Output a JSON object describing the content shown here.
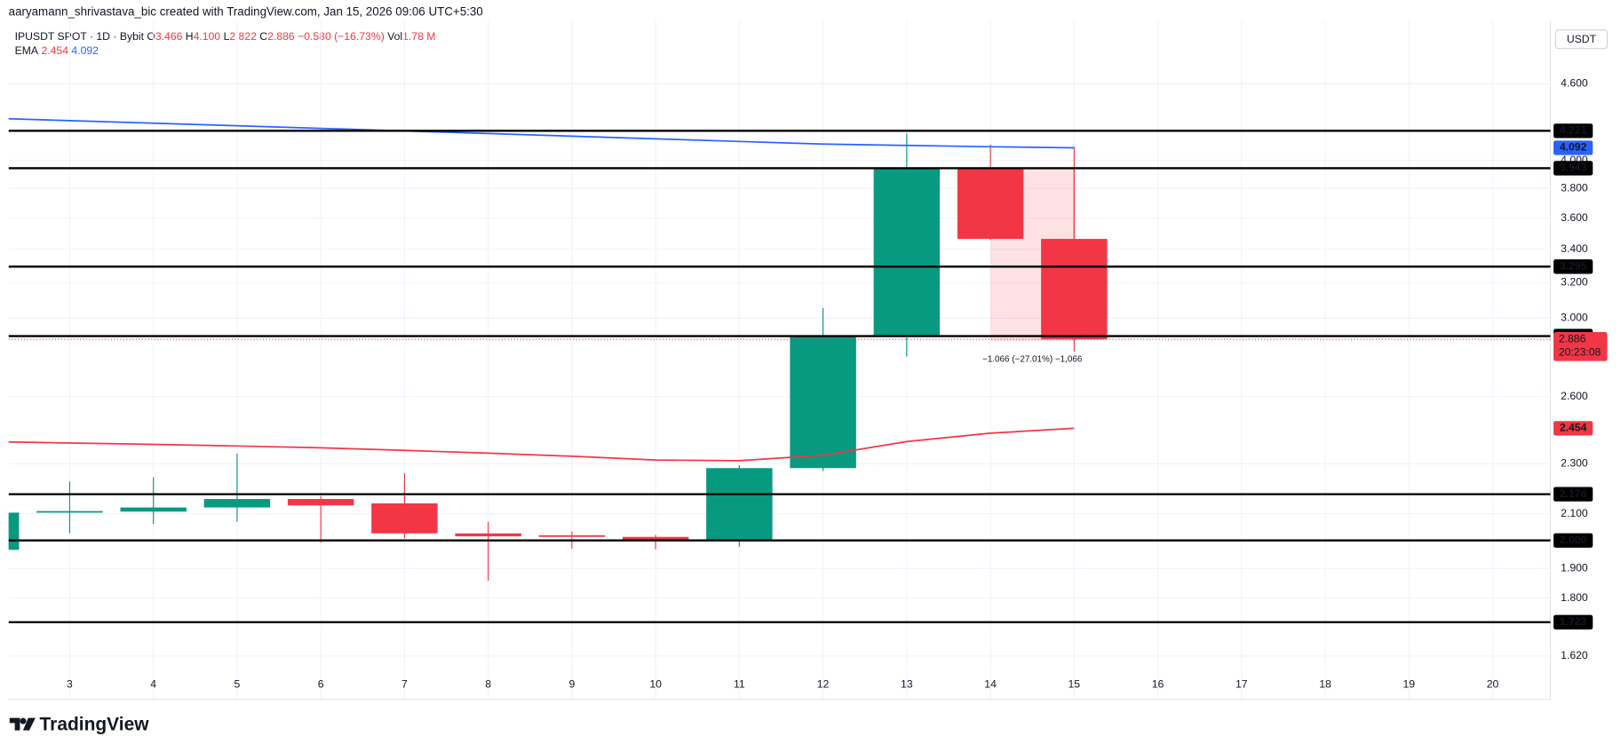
{
  "header": {
    "credit": "aaryamann_shrivastava_bic created with TradingView.com, Jan 15, 2026 09:06 UTC+5:30",
    "symbol": "IPUSDT SPOT · 1D · Bybit",
    "ohlc": [
      {
        "label": "O",
        "value": "3.466"
      },
      {
        "label": "H",
        "value": "4.100"
      },
      {
        "label": "L",
        "value": "2.822"
      },
      {
        "label": "C",
        "value": "2.886"
      }
    ],
    "change": "−0.580 (−16.73%)",
    "volume": {
      "label": "Vol",
      "value": "1.78 M"
    },
    "currency": "USDT",
    "brand": "TradingView"
  },
  "chart_data": {
    "type": "candlestick",
    "x": [
      2,
      3,
      4,
      5,
      6,
      7,
      8,
      9,
      10,
      11,
      12,
      13,
      14,
      15
    ],
    "series": [
      {
        "name": "IPUSDT",
        "up_color": "#089981",
        "down_color": "#f23645",
        "open": [
          1.966,
          2.104,
          2.108,
          2.124,
          2.157,
          2.14,
          2.026,
          2.019,
          2.013,
          2.003,
          2.282,
          2.904,
          3.943,
          3.466
        ],
        "high": [
          2.104,
          2.227,
          2.244,
          2.343,
          2.169,
          2.261,
          2.069,
          2.033,
          2.02,
          2.294,
          3.056,
          4.2,
          4.116,
          4.1
        ],
        "low": [
          1.966,
          2.026,
          2.061,
          2.069,
          1.992,
          2.008,
          1.858,
          1.97,
          1.968,
          1.977,
          2.27,
          2.797,
          3.461,
          2.822
        ],
        "close": [
          2.104,
          2.11,
          2.124,
          2.157,
          2.132,
          2.026,
          2.015,
          2.013,
          2.003,
          2.282,
          2.904,
          3.943,
          3.466,
          2.886
        ]
      }
    ],
    "ema": {
      "name": "EMA",
      "series": [
        {
          "color": "#f23645",
          "values": [
            2.395,
            2.389,
            2.383,
            2.376,
            2.368,
            2.357,
            2.345,
            2.332,
            2.316,
            2.313,
            2.336,
            2.395,
            2.432,
            2.454
          ]
        },
        {
          "color": "#2962ff",
          "values": [
            4.32,
            4.3,
            4.28,
            4.26,
            4.24,
            4.22,
            4.2,
            4.18,
            4.16,
            4.14,
            4.12,
            4.11,
            4.1,
            4.092
          ]
        }
      ]
    },
    "levels": [
      4.221,
      3.943,
      3.295,
      2.903,
      2.176,
      {
        "value": 2,
        "label": "2.000"
      },
      1.723
    ],
    "last_price": 2.886,
    "countdown": "20:23:08",
    "measure": {
      "x": [
        14,
        15
      ],
      "from": 3.943,
      "to": 2.877,
      "label": "−1.066 (−27.01%) −1,066"
    },
    "log_scale": true,
    "grid": true,
    "xlim": [
      2.27,
      20.69
    ],
    "xticks": [
      3,
      4,
      5,
      6,
      7,
      8,
      9,
      10,
      11,
      12,
      13,
      14,
      15,
      16,
      17,
      18,
      19,
      20
    ],
    "ylim": [
      1.497,
      5.16
    ],
    "yticks": [
      {
        "value": 4.6,
        "label": "4.600"
      },
      {
        "value": 4.0,
        "label": "4.000"
      },
      {
        "value": 3.8,
        "label": "3.800"
      },
      {
        "value": 3.6,
        "label": "3.600"
      },
      {
        "value": 3.4,
        "label": "3.400"
      },
      {
        "value": 3.2,
        "label": "3.200"
      },
      {
        "value": 3.0,
        "label": "3.000"
      },
      {
        "value": 2.6,
        "label": "2.600"
      },
      {
        "value": 2.3,
        "label": "2.300"
      },
      {
        "value": 2.1,
        "label": "2.100"
      },
      {
        "value": 1.9,
        "label": "1.900"
      },
      {
        "value": 1.8,
        "label": "1.800"
      },
      {
        "value": 1.62,
        "label": "1.620"
      }
    ]
  }
}
